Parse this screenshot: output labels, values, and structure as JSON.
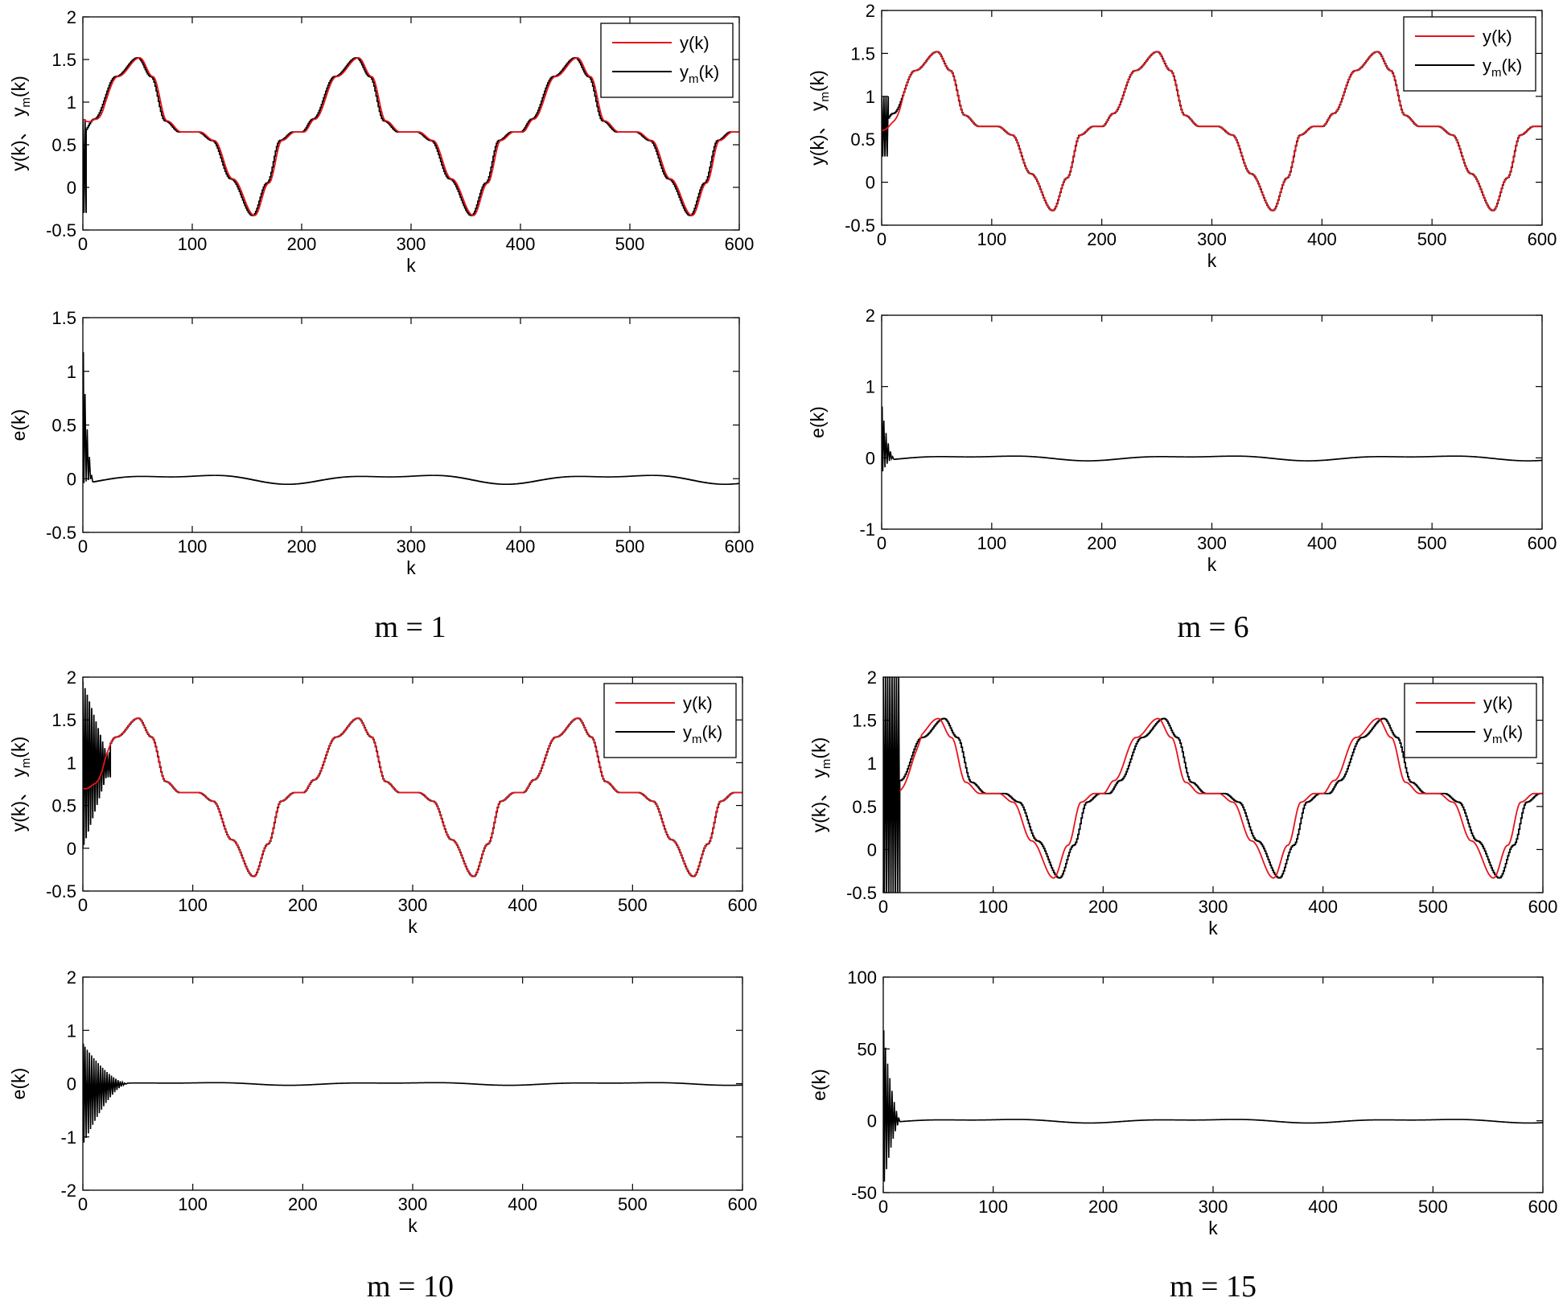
{
  "colors": {
    "y": "#e8141b",
    "ym": "#000000",
    "axis": "#000000",
    "background": "#ffffff"
  },
  "labels": {
    "xlabel": "k",
    "tracking_ylabel": "y(k)、 y",
    "tracking_ylabel_sub": "m",
    "tracking_ylabel_tail": "(k)",
    "error_ylabel": "e(k)",
    "legend_y": "y(k)",
    "legend_ym_main": "y",
    "legend_ym_sub": "m",
    "legend_ym_tail": "(k)"
  },
  "captions": [
    "m = 1",
    "m = 6",
    "m = 10",
    "m = 15"
  ],
  "chart_data": [
    {
      "type": "line",
      "panel": "tracking",
      "case": "m = 1",
      "xlim": [
        0,
        600
      ],
      "ylim": [
        -0.5,
        2
      ],
      "xticks": [
        0,
        100,
        200,
        300,
        400,
        500,
        600
      ],
      "yticks": [
        -0.5,
        0,
        0.5,
        1,
        1.5,
        2
      ],
      "ytick_labels": [
        "-0.5",
        "0",
        "0.5",
        "1",
        "1.5",
        "2"
      ],
      "xlabel": "k",
      "legend": "top-right",
      "grid": false,
      "series": [
        {
          "name": "y(k)",
          "color": "#e8141b",
          "kind": "smooth",
          "lag": 2,
          "x0": 0,
          "start": 0.8
        },
        {
          "name": "ym(k)",
          "color": "#000000",
          "kind": "stair",
          "lag": 0,
          "x0": 0
        }
      ],
      "reference": {
        "period": 200,
        "peak": 1.52,
        "trough": -0.33,
        "plateau": 0.65,
        "peaks_at": [
          50,
          250,
          450
        ],
        "troughs_at": [
          155,
          355,
          555
        ]
      },
      "transient": {
        "x_end": 3,
        "min": -0.3,
        "max": 0.8
      }
    },
    {
      "type": "line",
      "panel": "error",
      "case": "m = 1",
      "xlim": [
        0,
        600
      ],
      "ylim": [
        -0.5,
        1.5
      ],
      "xticks": [
        0,
        100,
        200,
        300,
        400,
        500,
        600
      ],
      "yticks": [
        -0.5,
        0,
        0.5,
        1,
        1.5
      ],
      "ytick_labels": [
        "-0.5",
        "0",
        "0.5",
        "1",
        "1.5"
      ],
      "xlabel": "k",
      "ylabel": "e(k)",
      "series": [
        {
          "name": "e(k)",
          "color": "#000000",
          "steady_amp": 0.05,
          "spike_max": 1.18,
          "spike_min": -0.05,
          "transient_end": 8
        }
      ]
    },
    {
      "type": "line",
      "panel": "tracking",
      "case": "m = 6",
      "xlim": [
        0,
        600
      ],
      "ylim": [
        -0.5,
        2
      ],
      "xticks": [
        0,
        100,
        200,
        300,
        400,
        500,
        600
      ],
      "yticks": [
        -0.5,
        0,
        0.5,
        1,
        1.5,
        2
      ],
      "ytick_labels": [
        "-0.5",
        "0",
        "0.5",
        "1",
        "1.5",
        "2"
      ],
      "xlabel": "k",
      "legend": "top-right",
      "grid": false,
      "series": [
        {
          "name": "y(k)",
          "color": "#e8141b",
          "kind": "smooth",
          "lag": 0.5,
          "x0": 0,
          "start": 0.6
        },
        {
          "name": "ym(k)",
          "color": "#000000",
          "kind": "stair",
          "lag": 0,
          "x0": 0
        }
      ],
      "reference": {
        "period": 200,
        "peak": 1.52,
        "trough": -0.33,
        "plateau": 0.65
      },
      "transient": {
        "x_end": 6,
        "min": 0.3,
        "max": 1.0
      }
    },
    {
      "type": "line",
      "panel": "error",
      "case": "m = 6",
      "xlim": [
        0,
        600
      ],
      "ylim": [
        -1,
        2
      ],
      "xticks": [
        0,
        100,
        200,
        300,
        400,
        500,
        600
      ],
      "yticks": [
        -1,
        0,
        1,
        2
      ],
      "ytick_labels": [
        "-1",
        "0",
        "1",
        "2"
      ],
      "xlabel": "k",
      "ylabel": "e(k)",
      "series": [
        {
          "name": "e(k)",
          "color": "#000000",
          "steady_amp": 0.04,
          "spike_max": 0.72,
          "spike_min": -0.22,
          "transient_end": 10
        }
      ]
    },
    {
      "type": "line",
      "panel": "tracking",
      "case": "m = 10",
      "xlim": [
        0,
        600
      ],
      "ylim": [
        -0.5,
        2
      ],
      "xticks": [
        0,
        100,
        200,
        300,
        400,
        500,
        600
      ],
      "yticks": [
        -0.5,
        0,
        0.5,
        1,
        1.5,
        2
      ],
      "ytick_labels": [
        "-0.5",
        "0",
        "0.5",
        "1",
        "1.5",
        "2"
      ],
      "xlabel": "k",
      "legend": "top-right",
      "grid": false,
      "series": [
        {
          "name": "y(k)",
          "color": "#e8141b",
          "kind": "smooth",
          "lag": 0.5,
          "x0": 0,
          "start": 0.7
        },
        {
          "name": "ym(k)",
          "color": "#000000",
          "kind": "stair",
          "lag": 0,
          "x0": 0
        }
      ],
      "reference": {
        "period": 200,
        "peak": 1.52,
        "trough": -0.33,
        "plateau": 0.65
      },
      "transient": {
        "x_end": 25,
        "min": 0.0,
        "max": 1.95
      }
    },
    {
      "type": "line",
      "panel": "error",
      "case": "m = 10",
      "xlim": [
        0,
        600
      ],
      "ylim": [
        -2,
        2
      ],
      "xticks": [
        0,
        100,
        200,
        300,
        400,
        500,
        600
      ],
      "yticks": [
        -2,
        -1,
        0,
        1,
        2
      ],
      "ytick_labels": [
        "-2",
        "-1",
        "0",
        "1",
        "2"
      ],
      "xlabel": "k",
      "ylabel": "e(k)",
      "series": [
        {
          "name": "e(k)",
          "color": "#000000",
          "steady_amp": 0.03,
          "spike_max": 0.75,
          "spike_min": -1.15,
          "transient_end": 40
        }
      ]
    },
    {
      "type": "line",
      "panel": "tracking",
      "case": "m = 15",
      "xlim": [
        0,
        600
      ],
      "ylim": [
        -0.5,
        2
      ],
      "xticks": [
        0,
        100,
        200,
        300,
        400,
        500,
        600
      ],
      "yticks": [
        -0.5,
        0,
        0.5,
        1,
        1.5,
        2
      ],
      "ytick_labels": [
        "-0.5",
        "0",
        "0.5",
        "1",
        "1.5",
        "2"
      ],
      "xlabel": "k",
      "legend": "top-right",
      "grid": false,
      "series": [
        {
          "name": "y(k)",
          "color": "#e8141b",
          "kind": "smooth",
          "lag": 0,
          "x0": 15,
          "start": 0.68
        },
        {
          "name": "ym(k)",
          "color": "#000000",
          "kind": "stair",
          "lag": 5,
          "x0": 15
        }
      ],
      "reference": {
        "period": 200,
        "peak": 1.52,
        "trough": -0.33,
        "plateau": 0.65
      },
      "transient": {
        "x_end": 15,
        "min": -0.5,
        "max": 2.0
      }
    },
    {
      "type": "line",
      "panel": "error",
      "case": "m = 15",
      "xlim": [
        0,
        600
      ],
      "ylim": [
        -50,
        100
      ],
      "xticks": [
        0,
        100,
        200,
        300,
        400,
        500,
        600
      ],
      "yticks": [
        -50,
        0,
        50,
        100
      ],
      "ytick_labels": [
        "-50",
        "0",
        "50",
        "100"
      ],
      "xlabel": "k",
      "ylabel": "e(k)",
      "series": [
        {
          "name": "e(k)",
          "color": "#000000",
          "steady_amp": 1.5,
          "spike_max": 63,
          "spike_min": -47,
          "transient_end": 15
        }
      ]
    }
  ]
}
